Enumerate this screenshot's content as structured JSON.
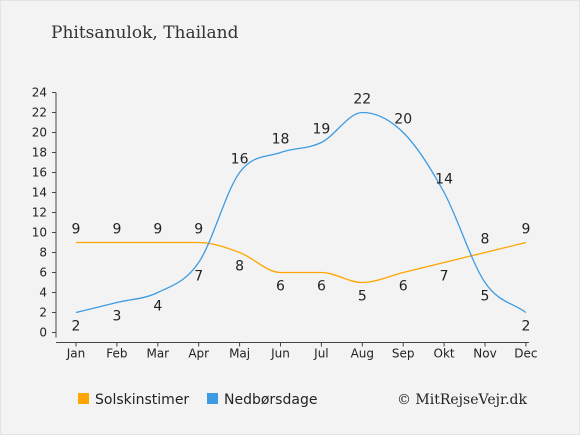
{
  "colors": {
    "sun": "#ffa500",
    "rain": "#3d9be2",
    "axis": "#444444",
    "background": "#f3f3f3"
  },
  "credit": "© MitRejseVejr.dk",
  "chart_data": {
    "type": "line",
    "title": "Phitsanulok, Thailand",
    "categories": [
      "Jan",
      "Feb",
      "Mar",
      "Apr",
      "Maj",
      "Jun",
      "Jul",
      "Aug",
      "Sep",
      "Okt",
      "Nov",
      "Dec"
    ],
    "ylim": [
      0,
      24
    ],
    "yticks": [
      0,
      2,
      4,
      6,
      8,
      10,
      12,
      14,
      16,
      18,
      20,
      22,
      24
    ],
    "grid": false,
    "legend_position": "bottom",
    "series": [
      {
        "name": "Solskinstimer",
        "color": "#ffa500",
        "values": [
          9,
          9,
          9,
          9,
          8,
          6,
          6,
          5,
          6,
          7,
          8,
          9
        ],
        "labels": [
          "9",
          "9",
          "9",
          "9",
          "8",
          "6",
          "6",
          "5",
          "6",
          "7",
          "8",
          "9"
        ]
      },
      {
        "name": "Nedbørsdage",
        "color": "#3d9be2",
        "values": [
          2,
          3,
          4,
          7,
          16,
          18,
          19,
          22,
          20,
          14,
          5,
          2
        ],
        "labels": [
          "2",
          "3",
          "4",
          "7",
          "16",
          "18",
          "19",
          "22",
          "20",
          "14",
          "5",
          "2"
        ]
      }
    ]
  }
}
